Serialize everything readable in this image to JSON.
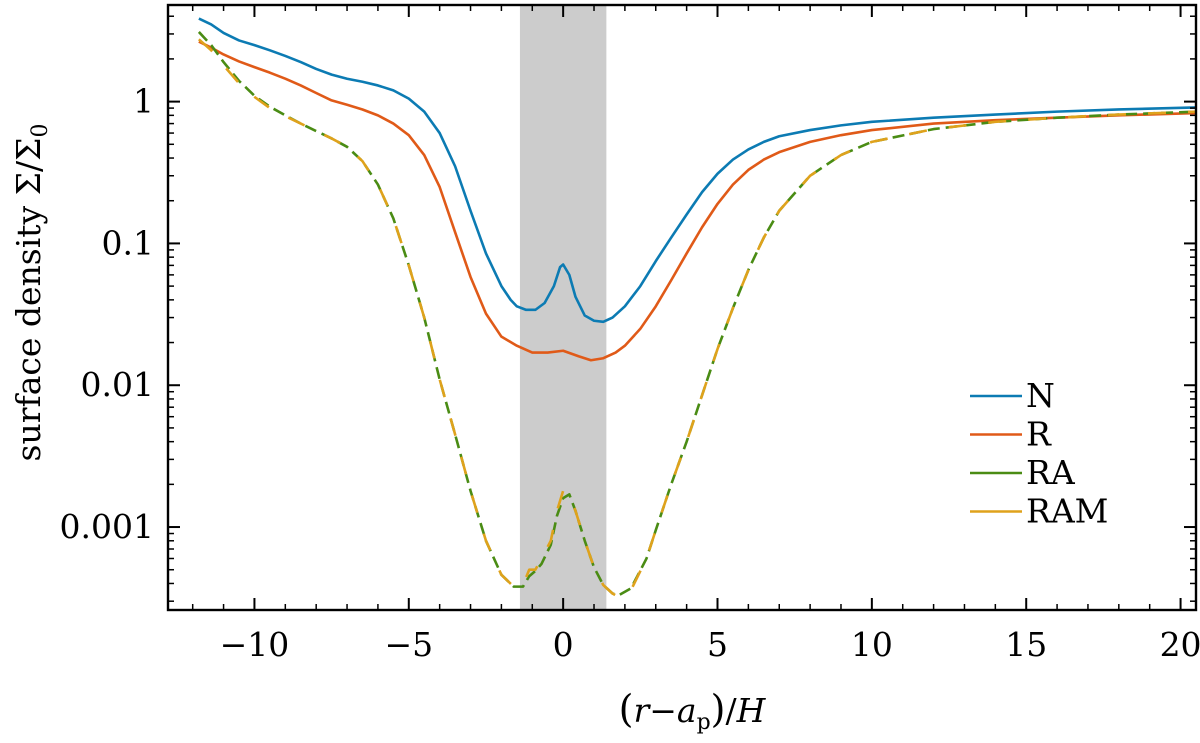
{
  "chart_data": {
    "type": "line",
    "xlabel": "(r−a_p)/H",
    "ylabel": "surface density Σ/Σ_0",
    "xlabel_parts": {
      "open": "(",
      "r": "r",
      "minus": "−",
      "a": "a",
      "sub": "p",
      "close": ")",
      "slash": "/",
      "H": "H"
    },
    "ylabel_parts": {
      "text": "surface density ",
      "sym": "Σ/Σ",
      "sub": "0"
    },
    "xlim": [
      -12.8,
      20.5
    ],
    "ylim": [
      0.00026,
      4.8
    ],
    "yscale": "log",
    "x_ticks": [
      -10,
      -5,
      0,
      5,
      10,
      15,
      20
    ],
    "x_tick_labels": [
      "−10",
      "−5",
      "0",
      "5",
      "10",
      "15",
      "20"
    ],
    "y_ticks": [
      0.001,
      0.01,
      0.1,
      1
    ],
    "y_tick_labels": [
      "0.001",
      "0.01",
      "0.1",
      "1"
    ],
    "shaded_region": {
      "x": [
        -1.4,
        1.4
      ],
      "color": "#cccccc"
    },
    "legend_position": "center-right",
    "series": [
      {
        "name": "N",
        "color": "#0c7bb3",
        "dash": "solid",
        "x": [
          -11.8,
          -11.4,
          -11,
          -10.5,
          -10,
          -9.5,
          -9,
          -8.5,
          -8,
          -7.5,
          -7,
          -6.5,
          -6,
          -5.5,
          -5,
          -4.5,
          -4,
          -3.5,
          -3,
          -2.5,
          -2,
          -1.7,
          -1.5,
          -1.2,
          -0.9,
          -0.6,
          -0.3,
          -0.1,
          0,
          0.2,
          0.4,
          0.7,
          1,
          1.3,
          1.6,
          2,
          2.5,
          3,
          3.5,
          4,
          4.5,
          5,
          5.5,
          6,
          6.5,
          7,
          8,
          9,
          10,
          12,
          14,
          16,
          18,
          20.5
        ],
        "y": [
          3.85,
          3.5,
          3.05,
          2.7,
          2.5,
          2.3,
          2.1,
          1.9,
          1.7,
          1.55,
          1.45,
          1.38,
          1.3,
          1.2,
          1.05,
          0.85,
          0.6,
          0.35,
          0.17,
          0.085,
          0.05,
          0.04,
          0.036,
          0.034,
          0.034,
          0.038,
          0.05,
          0.068,
          0.071,
          0.06,
          0.042,
          0.031,
          0.0285,
          0.028,
          0.03,
          0.036,
          0.05,
          0.075,
          0.11,
          0.16,
          0.23,
          0.31,
          0.39,
          0.46,
          0.52,
          0.57,
          0.63,
          0.68,
          0.72,
          0.77,
          0.81,
          0.85,
          0.88,
          0.91
        ]
      },
      {
        "name": "R",
        "color": "#e05a18",
        "dash": "solid",
        "x": [
          -11.8,
          -11.4,
          -11,
          -10.5,
          -10,
          -9.5,
          -9,
          -8.5,
          -8,
          -7.5,
          -7,
          -6.5,
          -6,
          -5.5,
          -5,
          -4.5,
          -4,
          -3.5,
          -3,
          -2.5,
          -2,
          -1.5,
          -1,
          -0.5,
          0,
          0.5,
          0.9,
          1.3,
          1.7,
          2,
          2.5,
          3,
          3.5,
          4,
          4.5,
          5,
          5.5,
          6,
          6.5,
          7,
          8,
          9,
          10,
          12,
          14,
          16,
          18,
          20.5
        ],
        "y": [
          2.65,
          2.4,
          2.15,
          1.92,
          1.75,
          1.6,
          1.45,
          1.3,
          1.15,
          1.02,
          0.95,
          0.88,
          0.8,
          0.7,
          0.58,
          0.42,
          0.25,
          0.12,
          0.058,
          0.032,
          0.022,
          0.019,
          0.017,
          0.017,
          0.0175,
          0.016,
          0.015,
          0.0155,
          0.017,
          0.019,
          0.025,
          0.036,
          0.055,
          0.085,
          0.13,
          0.19,
          0.26,
          0.33,
          0.39,
          0.44,
          0.52,
          0.58,
          0.63,
          0.7,
          0.74,
          0.77,
          0.8,
          0.83
        ]
      },
      {
        "name": "RA",
        "color": "#4a8c14",
        "dash": "12 6",
        "x": [
          -11.8,
          -11.4,
          -11,
          -10.5,
          -10,
          -9.5,
          -9,
          -8.5,
          -8,
          -7.5,
          -7,
          -6.5,
          -6,
          -5.5,
          -5,
          -4.5,
          -4,
          -3.5,
          -3,
          -2.5,
          -2,
          -1.6,
          -1.3,
          -1.1,
          -0.9,
          -0.7,
          -0.4,
          -0.2,
          0,
          0.2,
          0.4,
          0.7,
          1,
          1.3,
          1.6,
          1.8,
          2.2,
          2.7,
          3,
          3.5,
          4,
          4.5,
          5,
          5.5,
          6,
          6.5,
          7,
          8,
          9,
          10,
          12,
          14,
          16,
          18,
          20.5
        ],
        "y": [
          3.1,
          2.5,
          1.9,
          1.4,
          1.1,
          0.92,
          0.8,
          0.7,
          0.62,
          0.55,
          0.48,
          0.38,
          0.26,
          0.15,
          0.07,
          0.03,
          0.011,
          0.0045,
          0.0018,
          0.0008,
          0.00046,
          0.00038,
          0.00038,
          0.00045,
          0.00049,
          0.00055,
          0.00075,
          0.0012,
          0.0016,
          0.0017,
          0.0013,
          0.0008,
          0.00052,
          0.00039,
          0.00034,
          0.00033,
          0.00037,
          0.0006,
          0.00095,
          0.002,
          0.004,
          0.0085,
          0.018,
          0.035,
          0.065,
          0.11,
          0.17,
          0.3,
          0.42,
          0.52,
          0.64,
          0.72,
          0.77,
          0.81,
          0.85
        ]
      },
      {
        "name": "RAM",
        "color": "#dfa21c",
        "dash": "18 22",
        "x": [
          -11.8,
          -11.4,
          -11,
          -10.5,
          -10,
          -9.5,
          -9,
          -8.5,
          -8,
          -7.5,
          -7,
          -6.5,
          -6,
          -5.5,
          -5,
          -4.5,
          -4,
          -3.5,
          -3,
          -2.5,
          -2,
          -1.6,
          -1.3,
          -1.1,
          -0.9,
          -0.7,
          -0.4,
          -0.2,
          0,
          0.2,
          0.4,
          0.7,
          1,
          1.3,
          1.6,
          1.8,
          2.2,
          2.7,
          3,
          3.5,
          4,
          4.5,
          5,
          5.5,
          6,
          6.5,
          7,
          8,
          9,
          10,
          12,
          14,
          16,
          18,
          20.5
        ],
        "y": [
          2.75,
          2.3,
          1.8,
          1.35,
          1.08,
          0.9,
          0.79,
          0.7,
          0.62,
          0.55,
          0.48,
          0.38,
          0.26,
          0.15,
          0.07,
          0.03,
          0.011,
          0.0045,
          0.0018,
          0.0008,
          0.00046,
          0.00038,
          0.00039,
          0.0005,
          0.0005,
          0.0006,
          0.0008,
          0.0013,
          0.0018,
          0.0017,
          0.0013,
          0.0008,
          0.00052,
          0.00039,
          0.00034,
          0.00032,
          0.00036,
          0.0006,
          0.00095,
          0.002,
          0.004,
          0.0085,
          0.018,
          0.035,
          0.065,
          0.11,
          0.17,
          0.3,
          0.42,
          0.52,
          0.64,
          0.72,
          0.77,
          0.81,
          0.85
        ]
      }
    ]
  }
}
